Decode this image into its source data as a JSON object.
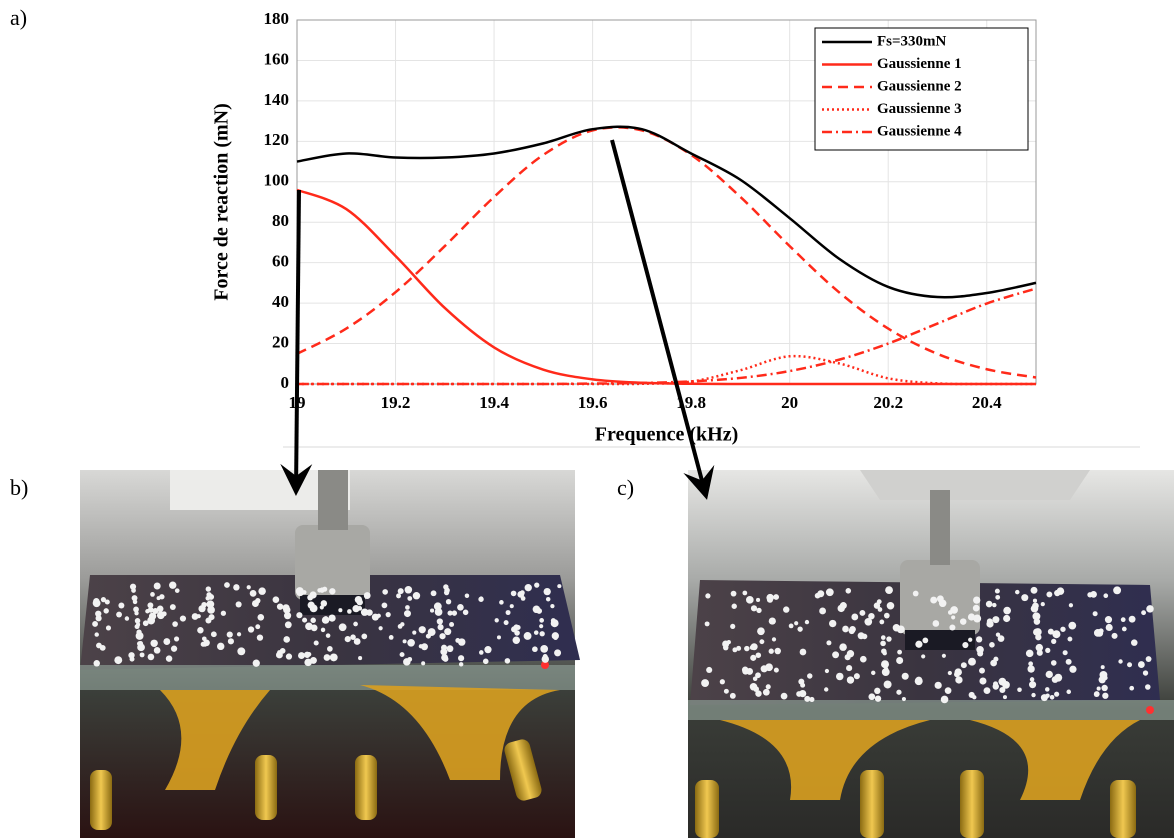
{
  "panel_labels": [
    "a)",
    "b)",
    "c)"
  ],
  "chart_data": {
    "type": "line",
    "xlabel": "Frequence (kHz)",
    "ylabel": "Force de reaction (mN)",
    "x": [
      19.0,
      19.1,
      19.2,
      19.3,
      19.4,
      19.5,
      19.6,
      19.7,
      19.8,
      19.9,
      20.0,
      20.1,
      20.2,
      20.3,
      20.4,
      20.5
    ],
    "series": [
      {
        "name": "Fs=330mN",
        "color": "#000000",
        "dash": "solid",
        "values": [
          110,
          114,
          112,
          112,
          114,
          119,
          126,
          126,
          114,
          101,
          82,
          62,
          48,
          43,
          45,
          50
        ]
      },
      {
        "name": "Gaussienne 1",
        "color": "#ff2a1a",
        "dash": "solid",
        "values": [
          96,
          86.5,
          63.3,
          37.6,
          18.1,
          7.1,
          2.3,
          0.6,
          0.1,
          0,
          0,
          0,
          0,
          0,
          0,
          0
        ]
      },
      {
        "name": "Gaussienne 2",
        "color": "#ff2a1a",
        "dash": "dashed",
        "values": [
          14.9,
          27.4,
          45.4,
          68.2,
          92.5,
          113.3,
          125.4,
          125.4,
          113.3,
          92.5,
          68.2,
          45.4,
          27.4,
          14.9,
          7.3,
          3.2
        ]
      },
      {
        "name": "Gaussienne 3",
        "color": "#ff2a1a",
        "dash": "dotted",
        "values": [
          0,
          0,
          0,
          0,
          0,
          0,
          0,
          0.1,
          1.2,
          6.8,
          13.7,
          10.2,
          2.8,
          0.3,
          0,
          0
        ]
      },
      {
        "name": "Gaussienne 4",
        "color": "#ff2a1a",
        "dash": "dashdot",
        "values": [
          0,
          0,
          0,
          0,
          0,
          0,
          0.2,
          0.5,
          1.3,
          3.0,
          6.4,
          12.0,
          20.0,
          29.9,
          39.8,
          47.2
        ]
      }
    ],
    "xlim": [
      19,
      20.5
    ],
    "xticks": [
      19,
      19.2,
      19.4,
      19.6,
      19.8,
      20,
      20.2,
      20.4
    ],
    "ylim": [
      0,
      180
    ],
    "yticks": [
      0,
      20,
      40,
      60,
      80,
      100,
      120,
      140,
      160,
      180
    ],
    "grid": true,
    "legend": "upper right"
  }
}
